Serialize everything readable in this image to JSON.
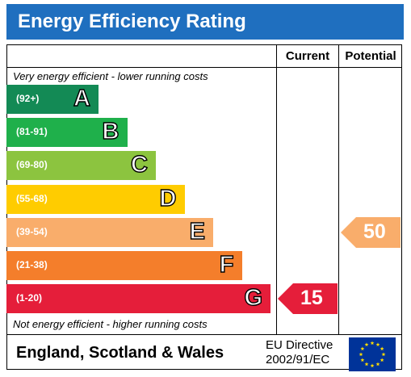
{
  "title": "Energy Efficiency Rating",
  "columns": {
    "current": "Current",
    "potential": "Potential"
  },
  "top_note": "Very energy efficient - lower running costs",
  "bottom_note": "Not energy efficient - higher running costs",
  "footer": {
    "country": "England, Scotland & Wales",
    "directive_line1": "EU Directive",
    "directive_line2": "2002/91/EC"
  },
  "colors": {
    "title_bar": "#1f6fbf",
    "A": "#138a55",
    "B": "#1fb04b",
    "C": "#8cc43f",
    "D": "#ffcc00",
    "E": "#f9ad6b",
    "F": "#f47e2b",
    "G": "#e51e3a",
    "eu_flag": "#003399",
    "eu_stars": "#ffdd00"
  },
  "chart_data": {
    "type": "bar",
    "categories": [
      "A",
      "B",
      "C",
      "D",
      "E",
      "F",
      "G"
    ],
    "ranges": [
      "(92+)",
      "(81-91)",
      "(69-80)",
      "(55-68)",
      "(39-54)",
      "(21-38)",
      "(1-20)"
    ],
    "current": {
      "value": 15,
      "band": "G"
    },
    "potential": {
      "value": 50,
      "band": "E"
    }
  }
}
